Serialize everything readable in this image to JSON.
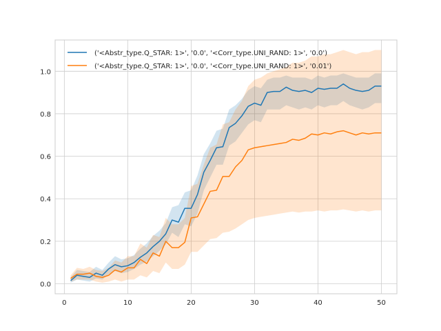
{
  "chart_data": {
    "type": "line",
    "title": "",
    "xlabel": "",
    "ylabel": "",
    "xlim": [
      -1.45,
      52.45
    ],
    "ylim": [
      -0.047,
      1.147
    ],
    "xticks": [
      0,
      10,
      20,
      30,
      40,
      50
    ],
    "yticks": [
      0.0,
      0.2,
      0.4,
      0.6,
      0.8,
      1.0
    ],
    "xtick_labels": [
      "0",
      "10",
      "20",
      "30",
      "40",
      "50"
    ],
    "ytick_labels": [
      "0.0",
      "0.2",
      "0.4",
      "0.6",
      "0.8",
      "1.0"
    ],
    "grid": true,
    "legend_position": "upper-left",
    "x": [
      1,
      2,
      3,
      4,
      5,
      6,
      7,
      8,
      9,
      10,
      11,
      12,
      13,
      14,
      15,
      16,
      17,
      18,
      19,
      20,
      21,
      22,
      23,
      24,
      25,
      26,
      27,
      28,
      29,
      30,
      31,
      32,
      33,
      34,
      35,
      36,
      37,
      38,
      39,
      40,
      41,
      42,
      43,
      44,
      45,
      46,
      47,
      48,
      49,
      50
    ],
    "series": [
      {
        "name": "('<Abstr_type.Q_STAR: 1>', '0.0', '<Corr_type.UNI_RAND: 1>', '0.0')",
        "color": "#1f77b4",
        "values": [
          0.015,
          0.04,
          0.035,
          0.03,
          0.05,
          0.04,
          0.07,
          0.09,
          0.08,
          0.085,
          0.1,
          0.125,
          0.145,
          0.175,
          0.2,
          0.235,
          0.3,
          0.29,
          0.355,
          0.355,
          0.42,
          0.525,
          0.58,
          0.64,
          0.645,
          0.735,
          0.755,
          0.79,
          0.835,
          0.85,
          0.84,
          0.9,
          0.905,
          0.905,
          0.925,
          0.91,
          0.905,
          0.91,
          0.9,
          0.92,
          0.915,
          0.92,
          0.92,
          0.94,
          0.92,
          0.91,
          0.905,
          0.91,
          0.93,
          0.93
        ],
        "lower": [
          0.005,
          0.02,
          0.015,
          0.01,
          0.025,
          0.02,
          0.045,
          0.06,
          0.05,
          0.055,
          0.07,
          0.09,
          0.105,
          0.13,
          0.155,
          0.185,
          0.24,
          0.22,
          0.28,
          0.27,
          0.33,
          0.44,
          0.5,
          0.56,
          0.56,
          0.65,
          0.67,
          0.71,
          0.75,
          0.77,
          0.76,
          0.82,
          0.82,
          0.82,
          0.84,
          0.83,
          0.82,
          0.83,
          0.82,
          0.84,
          0.83,
          0.84,
          0.84,
          0.86,
          0.84,
          0.83,
          0.82,
          0.83,
          0.85,
          0.85
        ],
        "upper": [
          0.03,
          0.065,
          0.06,
          0.055,
          0.08,
          0.065,
          0.1,
          0.13,
          0.115,
          0.12,
          0.135,
          0.165,
          0.19,
          0.225,
          0.25,
          0.285,
          0.36,
          0.37,
          0.43,
          0.44,
          0.51,
          0.61,
          0.66,
          0.72,
          0.73,
          0.82,
          0.84,
          0.87,
          0.91,
          0.93,
          0.92,
          0.96,
          0.97,
          0.97,
          0.98,
          0.97,
          0.97,
          0.97,
          0.96,
          0.98,
          0.97,
          0.98,
          0.98,
          0.99,
          0.98,
          0.97,
          0.97,
          0.97,
          0.99,
          0.99
        ]
      },
      {
        "name": "('<Abstr_type.Q_STAR: 1>', '0.0', '<Corr_type.UNI_RAND: 1>', '0.01')",
        "color": "#ff7f0e",
        "values": [
          0.025,
          0.045,
          0.045,
          0.05,
          0.035,
          0.03,
          0.04,
          0.065,
          0.055,
          0.075,
          0.075,
          0.115,
          0.095,
          0.145,
          0.13,
          0.2,
          0.17,
          0.17,
          0.195,
          0.31,
          0.315,
          0.375,
          0.435,
          0.44,
          0.505,
          0.505,
          0.55,
          0.58,
          0.63,
          0.64,
          0.645,
          0.65,
          0.655,
          0.66,
          0.665,
          0.68,
          0.675,
          0.685,
          0.705,
          0.7,
          0.71,
          0.705,
          0.715,
          0.72,
          0.71,
          0.7,
          0.71,
          0.705,
          0.71,
          0.71
        ],
        "lower": [
          0.01,
          0.02,
          0.02,
          0.02,
          0.01,
          0.005,
          0.01,
          0.02,
          0.01,
          0.02,
          0.02,
          0.04,
          0.03,
          0.06,
          0.05,
          0.1,
          0.07,
          0.07,
          0.09,
          0.15,
          0.15,
          0.18,
          0.21,
          0.215,
          0.24,
          0.245,
          0.26,
          0.28,
          0.3,
          0.31,
          0.315,
          0.32,
          0.325,
          0.33,
          0.335,
          0.34,
          0.335,
          0.34,
          0.34,
          0.345,
          0.34,
          0.345,
          0.345,
          0.35,
          0.345,
          0.34,
          0.345,
          0.34,
          0.345,
          0.345
        ],
        "upper": [
          0.04,
          0.075,
          0.07,
          0.08,
          0.065,
          0.06,
          0.075,
          0.11,
          0.1,
          0.13,
          0.13,
          0.19,
          0.17,
          0.23,
          0.22,
          0.31,
          0.28,
          0.28,
          0.31,
          0.46,
          0.47,
          0.56,
          0.64,
          0.655,
          0.75,
          0.76,
          0.82,
          0.86,
          0.93,
          0.96,
          0.97,
          0.99,
          1.0,
          1.01,
          1.02,
          1.04,
          1.04,
          1.05,
          1.07,
          1.07,
          1.08,
          1.08,
          1.09,
          1.1,
          1.09,
          1.08,
          1.09,
          1.09,
          1.1,
          1.1
        ]
      }
    ]
  }
}
